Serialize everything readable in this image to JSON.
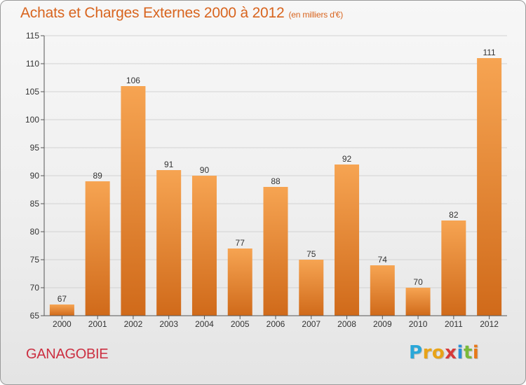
{
  "header": {
    "title": "Achats et Charges Externes 2000 à 2012",
    "unit": "(en milliers d'€)"
  },
  "footer": {
    "commune": "GANAGOBIE",
    "logo": {
      "letters": [
        "P",
        "r",
        "o",
        "x",
        "i",
        "t",
        "i"
      ],
      "colors": [
        "#2aa7d8",
        "#e8a318",
        "#e8a318",
        "#d63a3a",
        "#2a8fd8",
        "#7ab93a",
        "#e87818"
      ]
    }
  },
  "colors": {
    "title": "#d8641e",
    "bar_top": "#f6a452",
    "bar_bottom": "#d06a1a",
    "commune": "#cc2f41"
  },
  "chart_data": {
    "type": "bar",
    "title": "Achats et Charges Externes 2000 à 2012",
    "subtitle": "(en milliers d'€)",
    "categories": [
      "2000",
      "2001",
      "2002",
      "2003",
      "2004",
      "2005",
      "2006",
      "2007",
      "2008",
      "2009",
      "2010",
      "2011",
      "2012"
    ],
    "values": [
      67,
      89,
      106,
      91,
      90,
      77,
      88,
      75,
      92,
      74,
      70,
      82,
      111
    ],
    "ylim": [
      65,
      115
    ],
    "yticks": [
      65,
      70,
      75,
      80,
      85,
      90,
      95,
      100,
      105,
      110,
      115
    ],
    "grid": true,
    "legend": "none"
  }
}
